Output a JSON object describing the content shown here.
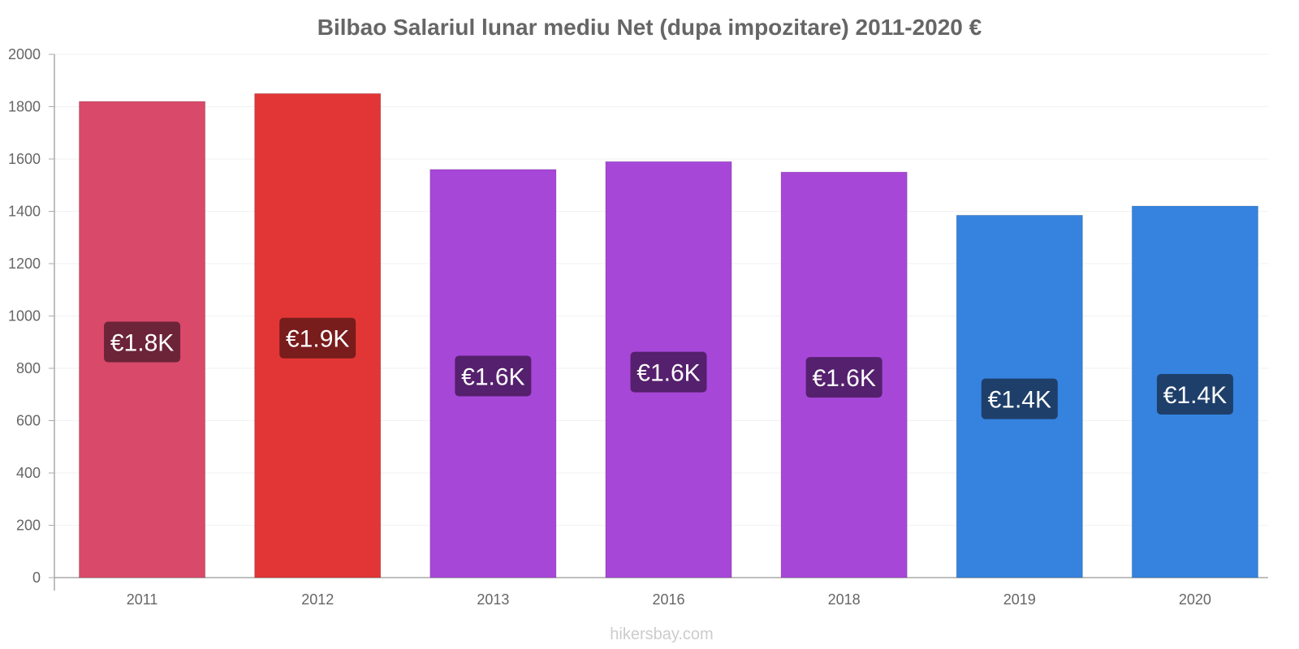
{
  "chart_data": {
    "type": "bar",
    "title": "Bilbao Salariul lunar mediu Net (dupa impozitare) 2011-2020 €",
    "xlabel": "",
    "ylabel": "",
    "ylim": [
      0,
      2000
    ],
    "yticks": [
      0,
      200,
      400,
      600,
      800,
      1000,
      1200,
      1400,
      1600,
      1800,
      2000
    ],
    "grid": true,
    "legend": "none",
    "categories": [
      "2011",
      "2012",
      "2013",
      "2016",
      "2018",
      "2019",
      "2020"
    ],
    "values": [
      1820,
      1850,
      1560,
      1590,
      1550,
      1385,
      1420
    ],
    "data_labels": [
      "€1.8K",
      "€1.9K",
      "€1.6K",
      "€1.6K",
      "€1.6K",
      "€1.4K",
      "€1.4K"
    ],
    "bar_colors": [
      "#d9496a",
      "#e23636",
      "#a747d8",
      "#a747d8",
      "#a747d8",
      "#3583df",
      "#3583df"
    ],
    "label_bg_colors": [
      "#6c2438",
      "#781c1c",
      "#55206d",
      "#55206d",
      "#55206d",
      "#1e3f6a",
      "#1e3f6a"
    ]
  },
  "footer": {
    "watermark": "hikersbay.com"
  }
}
